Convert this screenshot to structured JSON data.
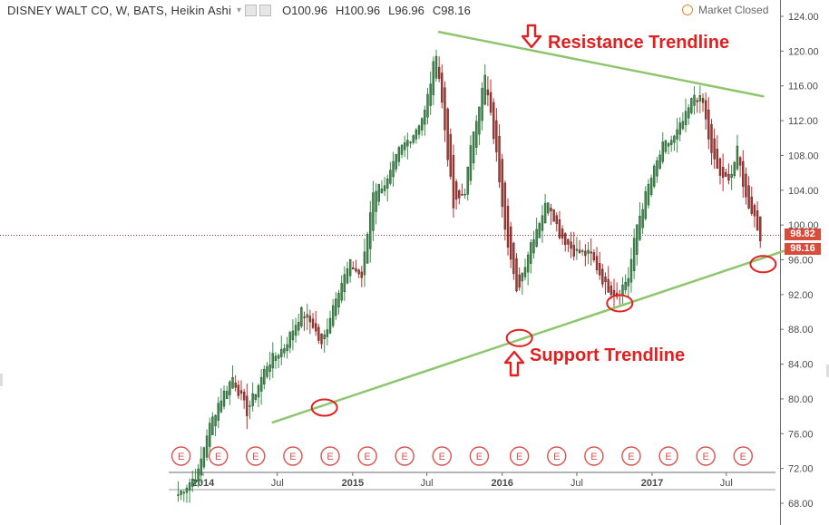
{
  "header": {
    "symbol": "DISNEY WALT CO, W, BATS, Heikin Ashi",
    "open_label": "O",
    "open": "100.96",
    "high_label": "H",
    "high": "100.96",
    "low_label": "L",
    "low": "96.96",
    "close_label": "C",
    "close": "98.16"
  },
  "status": {
    "market": "Market Closed"
  },
  "annotations": {
    "resistance": "Resistance Trendline",
    "support": "Support Trendline"
  },
  "price_tags": {
    "top": "98.82",
    "bottom": "98.16"
  },
  "earnings_marker_label": "E",
  "colors": {
    "up": "#3a8e4a",
    "down": "#c0282d",
    "trend": "#8ec66e",
    "annotation": "#e02020",
    "crosshair": "#c0282d"
  },
  "chart_data": {
    "type": "candlestick",
    "style": "Heikin Ashi",
    "interval": "W",
    "yaxis": {
      "side": "right",
      "ticks": [
        "124.00",
        "120.00",
        "116.00",
        "112.00",
        "108.00",
        "104.00",
        "100.00",
        "96.00",
        "92.00",
        "88.00",
        "84.00",
        "80.00",
        "76.00",
        "72.00",
        "68.00"
      ],
      "range": [
        67,
        124.5
      ]
    },
    "xaxis": {
      "ticks": [
        "2014",
        "Jul",
        "2015",
        "Jul",
        "2016",
        "Jul",
        "2017",
        "Jul"
      ],
      "bold_ticks": [
        "2014",
        "2015",
        "2016",
        "2017"
      ]
    },
    "anchors": [
      {
        "date": "2013-11-01",
        "price": 69.0
      },
      {
        "date": "2013-12-20",
        "price": 71.5
      },
      {
        "date": "2014-01-10",
        "price": 76.0
      },
      {
        "date": "2014-02-07",
        "price": 79.5
      },
      {
        "date": "2014-03-14",
        "price": 82.5
      },
      {
        "date": "2014-04-18",
        "price": 78.5
      },
      {
        "date": "2014-06-06",
        "price": 84.0
      },
      {
        "date": "2014-07-18",
        "price": 86.0
      },
      {
        "date": "2014-08-29",
        "price": 90.0
      },
      {
        "date": "2014-09-26",
        "price": 88.5
      },
      {
        "date": "2014-10-17",
        "price": 86.0
      },
      {
        "date": "2014-11-21",
        "price": 92.0
      },
      {
        "date": "2014-12-26",
        "price": 95.5
      },
      {
        "date": "2015-01-23",
        "price": 94.0
      },
      {
        "date": "2015-02-20",
        "price": 104.0
      },
      {
        "date": "2015-03-27",
        "price": 105.0
      },
      {
        "date": "2015-04-24",
        "price": 108.5
      },
      {
        "date": "2015-05-29",
        "price": 110.5
      },
      {
        "date": "2015-06-26",
        "price": 113.0
      },
      {
        "date": "2015-07-24",
        "price": 120.0
      },
      {
        "date": "2015-08-21",
        "price": 108.0
      },
      {
        "date": "2015-09-04",
        "price": 102.0
      },
      {
        "date": "2015-10-02",
        "price": 104.0
      },
      {
        "date": "2015-10-23",
        "price": 111.0
      },
      {
        "date": "2015-11-20",
        "price": 117.0
      },
      {
        "date": "2015-12-18",
        "price": 108.0
      },
      {
        "date": "2016-01-08",
        "price": 100.0
      },
      {
        "date": "2016-02-05",
        "price": 92.0
      },
      {
        "date": "2016-02-19",
        "price": 94.5
      },
      {
        "date": "2016-03-11",
        "price": 98.0
      },
      {
        "date": "2016-04-22",
        "price": 103.0
      },
      {
        "date": "2016-05-20",
        "price": 99.0
      },
      {
        "date": "2016-06-24",
        "price": 97.0
      },
      {
        "date": "2016-08-05",
        "price": 96.5
      },
      {
        "date": "2016-09-09",
        "price": 93.0
      },
      {
        "date": "2016-10-07",
        "price": 92.0
      },
      {
        "date": "2016-11-04",
        "price": 94.0
      },
      {
        "date": "2016-11-25",
        "price": 100.0
      },
      {
        "date": "2016-12-23",
        "price": 104.5
      },
      {
        "date": "2017-01-27",
        "price": 109.0
      },
      {
        "date": "2017-02-24",
        "price": 110.0
      },
      {
        "date": "2017-03-24",
        "price": 112.5
      },
      {
        "date": "2017-04-14",
        "price": 115.0
      },
      {
        "date": "2017-05-05",
        "price": 114.0
      },
      {
        "date": "2017-05-26",
        "price": 108.0
      },
      {
        "date": "2017-06-23",
        "price": 105.0
      },
      {
        "date": "2017-07-14",
        "price": 106.0
      },
      {
        "date": "2017-07-28",
        "price": 108.5
      },
      {
        "date": "2017-08-18",
        "price": 103.0
      },
      {
        "date": "2017-09-08",
        "price": 101.0
      },
      {
        "date": "2017-09-22",
        "price": 98.2
      }
    ],
    "trendlines": [
      {
        "name": "Resistance Trendline",
        "from": {
          "date": "2015-07-31",
          "price": 122.2
        },
        "to": {
          "date": "2017-09-29",
          "price": 114.8
        }
      },
      {
        "name": "Support Trendline",
        "from": {
          "date": "2014-06-20",
          "price": 77.3
        },
        "to": {
          "date": "2017-12-01",
          "price": 97.2
        }
      }
    ],
    "touch_points": [
      {
        "date": "2014-10-24",
        "price": 79.0
      },
      {
        "date": "2016-02-12",
        "price": 87.0
      },
      {
        "date": "2016-10-14",
        "price": 91.0
      },
      {
        "date": "2017-09-29",
        "price": 95.5
      }
    ],
    "earnings_dates": [
      "2013-11-08",
      "2014-02-07",
      "2014-05-09",
      "2014-08-08",
      "2014-11-07",
      "2015-02-06",
      "2015-05-08",
      "2015-08-07",
      "2015-11-06",
      "2016-02-12",
      "2016-05-13",
      "2016-08-12",
      "2016-11-11",
      "2017-02-10",
      "2017-05-12",
      "2017-08-11"
    ],
    "current_price": 98.16,
    "last_bar": {
      "open": 100.96,
      "high": 100.96,
      "low": 96.96,
      "close": 98.16
    },
    "crosshair_price": 98.82
  }
}
